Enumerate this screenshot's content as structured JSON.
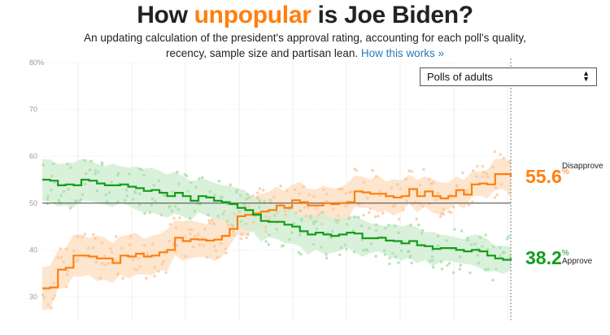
{
  "header": {
    "title_prefix": "How ",
    "title_highlight": "unpopular",
    "title_suffix": " is Joe Biden?",
    "subtitle_line1": "An updating calculation of the president's approval rating, accounting for each poll's quality,",
    "subtitle_line2": "recency, sample size and partisan lean.",
    "link_text": "How this works »"
  },
  "filter": {
    "selected": "Polls of adults"
  },
  "readouts": {
    "disapprove": {
      "value": "55.6",
      "pct": "%",
      "label": "Disapprove"
    },
    "approve": {
      "value": "38.2",
      "pct": "%",
      "label": "Approve"
    }
  },
  "colors": {
    "disapprove": "#ff7f0e",
    "approve": "#129e1b",
    "disapprove_band": "#fde1c6",
    "approve_band": "#d2efd3",
    "disapprove_dot": "#fcc79c",
    "approve_dot": "#a9dfab",
    "grid": "#e8e8e8"
  },
  "chart_data": {
    "type": "line",
    "ylim": [
      25,
      80
    ],
    "y_ticks": [
      "30",
      "40",
      "50",
      "60",
      "70",
      "80%"
    ],
    "y_tick_values": [
      30,
      40,
      50,
      60,
      70,
      80
    ],
    "x_range": [
      0,
      120
    ],
    "reference_line": 50,
    "series": [
      {
        "name": "Disapprove",
        "x": [
          0,
          2,
          4,
          6,
          8,
          10,
          12,
          14,
          16,
          18,
          20,
          22,
          24,
          26,
          28,
          30,
          32,
          34,
          36,
          38,
          40,
          42,
          44,
          46,
          48,
          50,
          52,
          54,
          56,
          58,
          60,
          62,
          64,
          66,
          68,
          70,
          72,
          74,
          76,
          78,
          80,
          82,
          84,
          86,
          88,
          90,
          92,
          94,
          96,
          98,
          100,
          102,
          104,
          106,
          108,
          110,
          112,
          114,
          116,
          118,
          120
        ],
        "values": [
          31.8,
          32,
          35.8,
          36.2,
          38.8,
          38.8,
          38.6,
          38.2,
          38.2,
          37.2,
          38.8,
          38.6,
          39.2,
          38.6,
          38.8,
          39.5,
          40,
          42.6,
          41.9,
          42.3,
          42.2,
          42,
          42.2,
          43,
          44.5,
          47.2,
          47.5,
          47.8,
          48.2,
          48.5,
          49.5,
          49,
          50.6,
          50.2,
          49.5,
          49.5,
          50,
          49.8,
          50,
          50.2,
          52.5,
          52.3,
          52,
          52,
          51.5,
          51.2,
          51.5,
          53,
          51.5,
          52.5,
          51.5,
          51,
          51.5,
          52.8,
          51.8,
          54,
          54.2,
          54,
          56.2,
          56.2,
          55.6
        ]
      },
      {
        "name": "Approve",
        "x": [
          0,
          2,
          4,
          6,
          8,
          10,
          12,
          14,
          16,
          18,
          20,
          22,
          24,
          26,
          28,
          30,
          32,
          34,
          36,
          38,
          40,
          42,
          44,
          46,
          48,
          50,
          52,
          54,
          56,
          58,
          60,
          62,
          64,
          66,
          68,
          70,
          72,
          74,
          76,
          78,
          80,
          82,
          84,
          86,
          88,
          90,
          92,
          94,
          96,
          98,
          100,
          102,
          104,
          106,
          108,
          110,
          112,
          114,
          116,
          118,
          120
        ],
        "values": [
          55,
          54.8,
          53.8,
          54,
          53.8,
          55,
          54.8,
          54.2,
          53.8,
          53.8,
          54,
          53.5,
          53.2,
          52.6,
          52.8,
          52.2,
          51.5,
          52.2,
          51.5,
          50.5,
          51.5,
          51.2,
          50.5,
          50.2,
          49.8,
          49,
          48.5,
          47.5,
          46.2,
          46,
          46,
          45.4,
          45,
          44,
          43.3,
          43.7,
          43.3,
          43,
          43.3,
          43.7,
          43.5,
          42.5,
          42.5,
          42.6,
          42,
          41.9,
          41.4,
          41.9,
          41,
          40.8,
          40.2,
          40.4,
          40.4,
          40,
          39.7,
          40,
          39.7,
          38.8,
          38.2,
          37.9,
          38.2
        ]
      }
    ]
  }
}
